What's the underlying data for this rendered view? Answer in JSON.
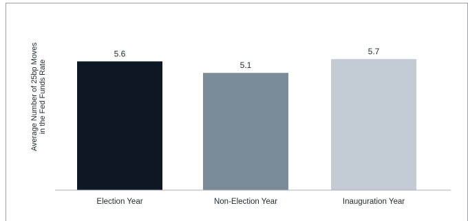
{
  "chart_data": {
    "type": "bar",
    "title": "",
    "xlabel": "",
    "ylabel": [
      "Average Number of 25bp Moves",
      "in the Fed Funds Rate"
    ],
    "categories": [
      "Election Year",
      "Non-Election Year",
      "Inauguration Year"
    ],
    "values": [
      5.6,
      5.1,
      5.7
    ],
    "value_labels": [
      "5.6",
      "5.1",
      "5.7"
    ],
    "colors": [
      "#0d1824",
      "#7b8c98",
      "#c3ccd5"
    ],
    "ylim": [
      0,
      6.3
    ],
    "grid": false,
    "legend": "none"
  }
}
